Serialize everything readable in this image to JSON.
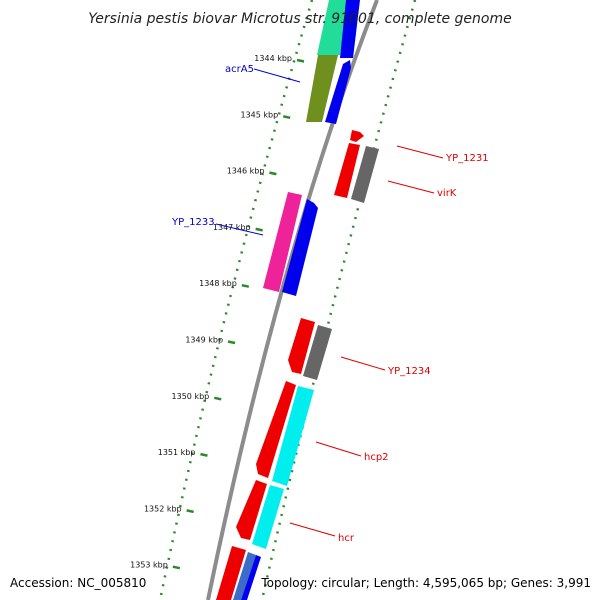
{
  "title": "Yersinia pestis biovar Microtus str. 91001, complete genome",
  "footer": {
    "accession": "Accession: NC_005810",
    "summary": "Topology: circular; Length: 4,595,065 bp; Genes: 3,991"
  },
  "colors": {
    "backbone": "#8c8c8c",
    "ring": "#2a8a2a",
    "left_label": "#0000cc",
    "right_label": "#dd0000"
  },
  "ticks": [
    {
      "kbp": 1344,
      "label": "1344 kbp"
    },
    {
      "kbp": 1345,
      "label": "1345 kbp"
    },
    {
      "kbp": 1346,
      "label": "1346 kbp"
    },
    {
      "kbp": 1347,
      "label": "1347 kbp"
    },
    {
      "kbp": 1348,
      "label": "1348 kbp"
    },
    {
      "kbp": 1349,
      "label": "1349 kbp"
    },
    {
      "kbp": 1350,
      "label": "1350 kbp"
    },
    {
      "kbp": 1351,
      "label": "1351 kbp"
    },
    {
      "kbp": 1352,
      "label": "1352 kbp"
    },
    {
      "kbp": 1353,
      "label": "1353 kbp"
    }
  ],
  "genes": [
    {
      "color": "#0000ee",
      "lane": 0
    },
    {
      "color": "#0000ee",
      "lane": 0
    },
    {
      "color": "#ff0000",
      "lane": 1
    },
    {
      "color": "#ff0000",
      "lane": 1
    },
    {
      "color": "#666666",
      "lane": 1
    },
    {
      "color": "#ee2299",
      "lane": 0
    },
    {
      "color": "#0000ee",
      "lane": 0
    },
    {
      "color": "#ee0000",
      "lane": 1
    },
    {
      "color": "#666666",
      "lane": 1
    },
    {
      "color": "#ee0000",
      "lane": 0
    },
    {
      "color": "#00eeee",
      "lane": 0
    },
    {
      "color": "#ee0000",
      "lane": 0
    },
    {
      "color": "#00eeee",
      "lane": 0
    },
    {
      "color": "#ee0000",
      "lane": 0
    },
    {
      "color": "#0000ee",
      "lane": 0
    }
  ],
  "labels": {
    "left": [
      "acrA5",
      "YP_1233"
    ],
    "right": [
      "YP_1231",
      "virK",
      "YP_1234",
      "hcp2",
      "hcr"
    ]
  }
}
